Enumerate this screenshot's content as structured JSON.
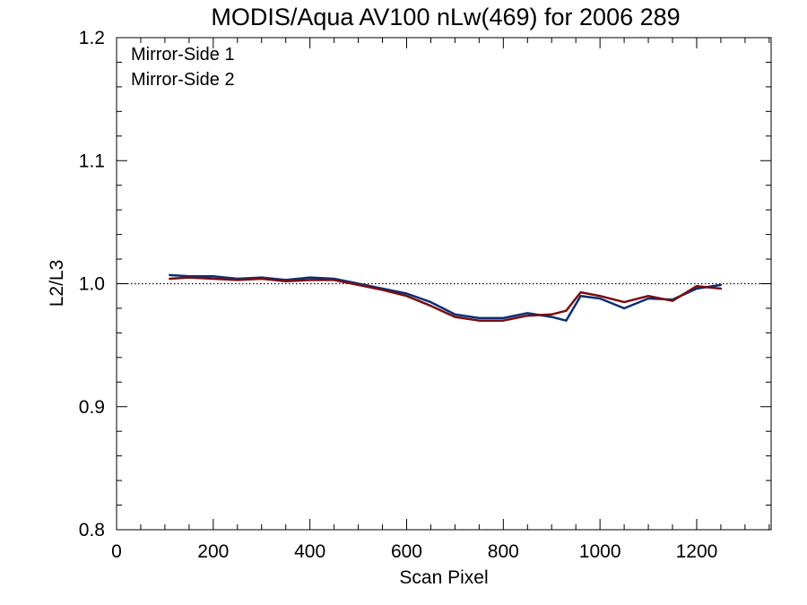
{
  "chart_data": {
    "type": "line",
    "title": "MODIS/Aqua AV100 nLw(469) for 2006 289",
    "xlabel": "Scan Pixel",
    "ylabel": "L2/L3",
    "xlim": [
      0,
      1354
    ],
    "ylim": [
      0.8,
      1.2
    ],
    "x_ticks": [
      0,
      200,
      400,
      600,
      800,
      1000,
      1200
    ],
    "x_tick_labels": [
      "0",
      "200",
      "400",
      "600",
      "800",
      "1000",
      "1200"
    ],
    "y_ticks": [
      0.8,
      0.9,
      1.0,
      1.1,
      1.2
    ],
    "y_tick_labels": [
      "0.8",
      "0.9",
      "1.0",
      "1.1",
      "1.2"
    ],
    "reference_line": {
      "y": 1.0,
      "style": "dotted"
    },
    "grid": false,
    "legend_position": "top-left",
    "x": [
      110,
      150,
      200,
      250,
      300,
      350,
      400,
      450,
      500,
      550,
      600,
      650,
      700,
      750,
      800,
      850,
      900,
      930,
      960,
      1000,
      1050,
      1100,
      1150,
      1200,
      1250
    ],
    "series": [
      {
        "name": "Mirror-Side 1",
        "color": "#0b2f73",
        "values": [
          1.007,
          1.006,
          1.006,
          1.004,
          1.005,
          1.003,
          1.005,
          1.004,
          1.0,
          0.996,
          0.992,
          0.985,
          0.975,
          0.972,
          0.972,
          0.976,
          0.973,
          0.97,
          0.99,
          0.988,
          0.98,
          0.988,
          0.987,
          0.996,
          0.999
        ]
      },
      {
        "name": "Mirror-Side 2",
        "color": "#7a0c12",
        "values": [
          1.004,
          1.005,
          1.004,
          1.003,
          1.004,
          1.002,
          1.003,
          1.003,
          0.999,
          0.995,
          0.99,
          0.982,
          0.973,
          0.97,
          0.97,
          0.974,
          0.975,
          0.978,
          0.993,
          0.99,
          0.985,
          0.99,
          0.986,
          0.998,
          0.996
        ]
      }
    ]
  }
}
